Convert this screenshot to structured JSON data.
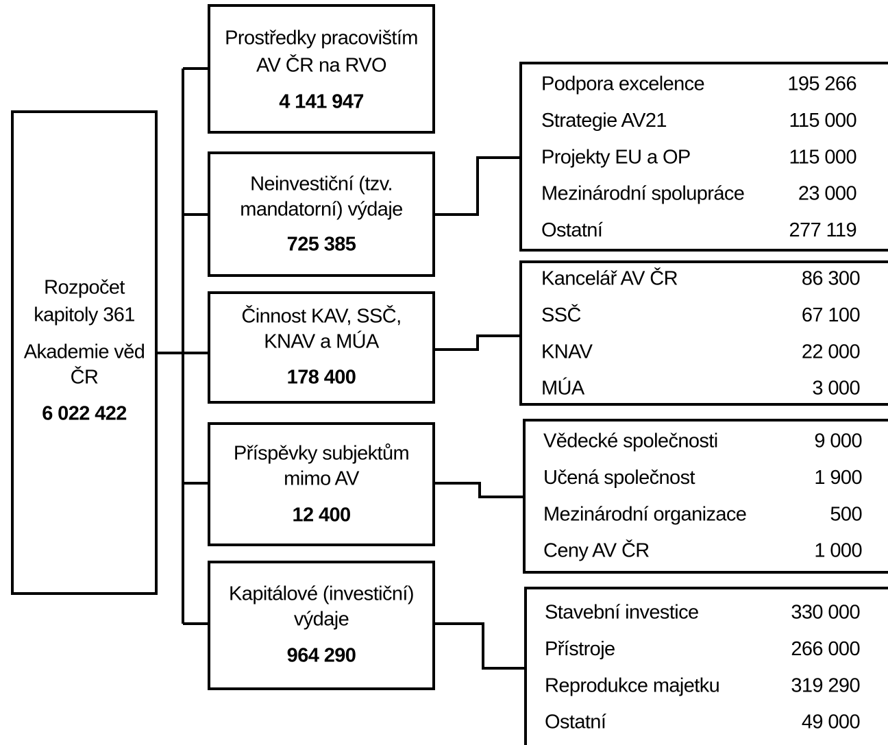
{
  "root": {
    "lines": [
      "Rozpočet",
      "kapitoly 361",
      "Akademie věd",
      "ČR"
    ],
    "value": "6 022 422"
  },
  "nodes": [
    {
      "lines": [
        "Prostředky pracovištím",
        "AV ČR na RVO"
      ],
      "value": "4 141 947"
    },
    {
      "lines": [
        "Neinvestiční (tzv.",
        "mandatorní) výdaje"
      ],
      "value": "725 385"
    },
    {
      "lines": [
        "Činnost KAV, SSČ,",
        "KNAV a MÚA"
      ],
      "value": "178 400"
    },
    {
      "lines": [
        "Příspěvky subjektům",
        "mimo AV"
      ],
      "value": "12 400"
    },
    {
      "lines": [
        "Kapitálové (investiční)",
        "výdaje"
      ],
      "value": "964 290"
    }
  ],
  "tables": [
    {
      "rows": [
        [
          "Podpora excelence",
          "195 266"
        ],
        [
          "Strategie AV21",
          "115 000"
        ],
        [
          "Projekty EU a OP",
          "115 000"
        ],
        [
          "Mezinárodní spolupráce",
          "23 000"
        ],
        [
          "Ostatní",
          "277 119"
        ]
      ]
    },
    {
      "rows": [
        [
          "Kancelář AV ČR",
          "86 300"
        ],
        [
          "SSČ",
          "67 100"
        ],
        [
          "KNAV",
          "22 000"
        ],
        [
          "MÚA",
          "3 000"
        ]
      ]
    },
    {
      "rows": [
        [
          "Vědecké společnosti",
          "9 000"
        ],
        [
          "Učená společnost",
          "1 900"
        ],
        [
          "Mezinárodní organizace",
          "500"
        ],
        [
          "Ceny AV ČR",
          "1 000"
        ]
      ]
    },
    {
      "rows": [
        [
          "Stavební investice",
          "330 000"
        ],
        [
          "Přístroje",
          "266 000"
        ],
        [
          "Reprodukce majetku",
          "319 290"
        ],
        [
          "Ostatní",
          "49 000"
        ]
      ]
    }
  ]
}
